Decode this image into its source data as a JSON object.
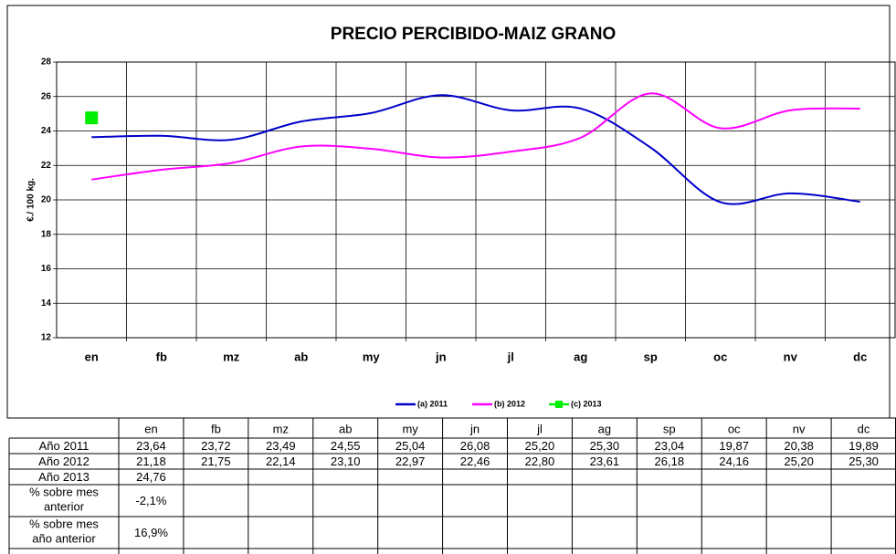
{
  "chart_data": {
    "type": "line",
    "title": "PRECIO PERCIBIDO-MAIZ GRANO",
    "y_label": "€./ 100 kg.",
    "categories": [
      "en",
      "fb",
      "mz",
      "ab",
      "my",
      "jn",
      "jl",
      "ag",
      "sp",
      "oc",
      "nv",
      "dc"
    ],
    "ylim": [
      12,
      28
    ],
    "yticks": [
      12,
      14,
      16,
      18,
      20,
      22,
      24,
      26,
      28
    ],
    "grid": true,
    "legend": "bottom",
    "series": [
      {
        "name": "(a) 2011",
        "color": "#0000cc",
        "marker": false,
        "values": [
          23.64,
          23.72,
          23.49,
          24.55,
          25.04,
          26.08,
          25.2,
          25.3,
          23.04,
          19.87,
          20.38,
          19.89
        ],
        "value_labels": [
          "23,64",
          "23,72",
          "23,49",
          "24,55",
          "25,04",
          "26,08",
          "25,20",
          "25,30",
          "23,04",
          "19,87",
          "20,38",
          "19,89"
        ]
      },
      {
        "name": "(b) 2012",
        "color": "#ff00ff",
        "marker": false,
        "values": [
          21.18,
          21.75,
          22.14,
          23.1,
          22.97,
          22.46,
          22.8,
          23.61,
          26.18,
          24.16,
          25.2,
          25.3
        ],
        "value_labels": [
          "21,18",
          "21,75",
          "22,14",
          "23,10",
          "22,97",
          "22,46",
          "22,80",
          "23,61",
          "26,18",
          "24,16",
          "25,20",
          "25,30"
        ]
      },
      {
        "name": "(c) 2013",
        "color": "#00ee00",
        "marker": true,
        "values": [
          24.76,
          null,
          null,
          null,
          null,
          null,
          null,
          null,
          null,
          null,
          null,
          null
        ],
        "value_labels": [
          "24,76",
          null,
          null,
          null,
          null,
          null,
          null,
          null,
          null,
          null,
          null,
          null
        ]
      }
    ],
    "table_row_labels": [
      "Año 2011",
      "Año 2012",
      "Año 2013"
    ],
    "extra_rows": [
      {
        "name": "% sobre mes anterior",
        "values": [
          -2.1,
          null,
          null,
          null,
          null,
          null,
          null,
          null,
          null,
          null,
          null,
          null
        ],
        "value_labels": [
          "-2,1%",
          null,
          null,
          null,
          null,
          null,
          null,
          null,
          null,
          null,
          null,
          null
        ]
      },
      {
        "name": "% sobre mes año anterior",
        "values": [
          16.9,
          null,
          null,
          null,
          null,
          null,
          null,
          null,
          null,
          null,
          null,
          null
        ],
        "value_labels": [
          "16,9%",
          null,
          null,
          null,
          null,
          null,
          null,
          null,
          null,
          null,
          null,
          null
        ]
      }
    ]
  }
}
